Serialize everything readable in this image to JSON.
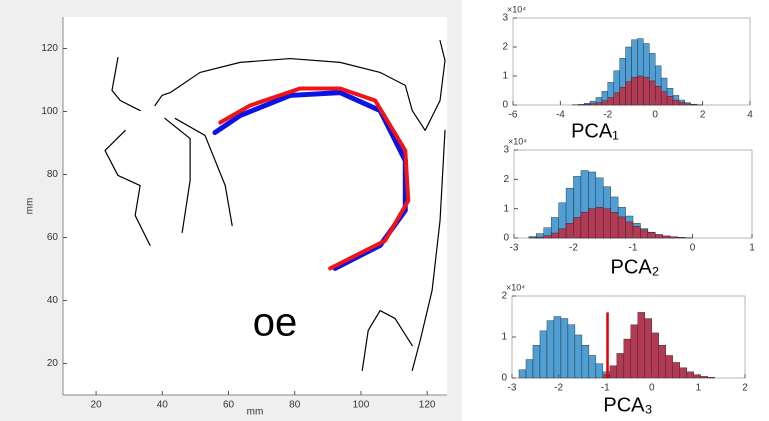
{
  "chart_data": [
    {
      "type": "line",
      "xlabel": "mm",
      "ylabel": "mm",
      "annotations": [
        "oe"
      ],
      "xlim": [
        10,
        126
      ],
      "ylim": [
        10,
        130
      ],
      "xticks": [
        20,
        40,
        60,
        80,
        100,
        120
      ],
      "yticks": [
        20,
        40,
        60,
        80,
        100,
        120
      ],
      "series": [
        {
          "color": "#000000",
          "line_width": 1.2,
          "x": [
            26.6,
            24.8,
            27.3,
            33.3
          ],
          "values": [
            117.1,
            106.7,
            103.5,
            100.3
          ]
        },
        {
          "color": "#000000",
          "line_width": 1.2,
          "x": [
            37.8,
            39.9,
            42.4,
            51.4,
            63.5,
            78.6,
            93.7,
            105.8,
            113.4,
            115.5,
            119.4,
            123.9,
            125.4,
            123.9
          ],
          "values": [
            101.9,
            105.1,
            106.0,
            112.4,
            115.6,
            116.8,
            115.6,
            112.4,
            108.3,
            100.3,
            94.0,
            103.5,
            116.2,
            122.5
          ]
        },
        {
          "color": "#000000",
          "line_width": 1.2,
          "x": [
            125.4,
            123.9,
            121.5,
            117.9,
            115.5
          ],
          "values": [
            94.0,
            65.4,
            43.2,
            27.3,
            17.8
          ]
        },
        {
          "color": "#000000",
          "line_width": 1.2,
          "x": [
            100.4,
            102.2,
            105.8,
            110.3,
            115.5
          ],
          "values": [
            17.8,
            30.5,
            36.8,
            34.3,
            25.7
          ]
        },
        {
          "color": "#000000",
          "line_width": 1.2,
          "x": [
            40.8,
            48.4,
            48.4,
            46.0
          ],
          "values": [
            97.8,
            91.4,
            78.1,
            61.6
          ]
        },
        {
          "color": "#000000",
          "line_width": 1.2,
          "x": [
            28.8,
            22.7,
            26.6,
            33.3,
            31.8,
            36.3
          ],
          "values": [
            94.0,
            87.6,
            79.7,
            76.5,
            67.0,
            57.5
          ]
        },
        {
          "color": "#000000",
          "line_width": 1.2,
          "x": [
            43.9,
            52.9,
            59.0,
            61.1
          ],
          "values": [
            97.8,
            92.4,
            76.5,
            63.8
          ]
        },
        {
          "color": "#0a14e6",
          "line_width": 5,
          "x": [
            55.9,
            63.5,
            78.6,
            93.7,
            105.8,
            113.4,
            113.4,
            105.8,
            92.2
          ],
          "values": [
            93.3,
            98.7,
            105.1,
            106.0,
            100.3,
            84.4,
            68.6,
            57.5,
            50.2
          ]
        },
        {
          "color": "#f01414",
          "line_width": 4,
          "x": [
            57.5,
            66.5,
            81.6,
            93.7,
            104.3,
            113.4,
            114.3,
            107.3,
            90.7
          ],
          "values": [
            96.5,
            101.9,
            107.3,
            107.3,
            103.5,
            87.6,
            71.7,
            59.0,
            50.2
          ]
        }
      ]
    },
    {
      "type": "histogram",
      "xlabel": "PCA₁",
      "y_exponent": "×10⁴",
      "xlim": [
        -6,
        4
      ],
      "ylim": [
        0,
        3
      ],
      "xticks": [
        -6,
        -4,
        -2,
        0,
        2,
        4
      ],
      "yticks": [
        0,
        1,
        2,
        3
      ],
      "bins": [
        -4.5,
        -4.25,
        -4,
        -3.75,
        -3.5,
        -3.25,
        -3,
        -2.75,
        -2.5,
        -2.25,
        -2,
        -1.75,
        -1.5,
        -1.25,
        -1,
        -0.75,
        -0.5,
        -0.25,
        0,
        0.25,
        0.5,
        0.75,
        1,
        1.25,
        1.5,
        1.75,
        2
      ],
      "series": [
        {
          "color": "#4f9fd4",
          "values": [
            0,
            0,
            0,
            0,
            0.01,
            0.02,
            0.06,
            0.13,
            0.26,
            0.47,
            0.78,
            1.18,
            1.61,
            2.0,
            2.25,
            2.29,
            2.12,
            1.78,
            1.35,
            0.93,
            0.58,
            0.33,
            0.17,
            0.08,
            0.03,
            0.01
          ]
        },
        {
          "color": "#b23a54",
          "values": [
            0,
            0,
            0,
            0,
            0,
            0.01,
            0.02,
            0.04,
            0.08,
            0.15,
            0.26,
            0.42,
            0.61,
            0.8,
            0.95,
            1.0,
            0.96,
            0.83,
            0.65,
            0.46,
            0.3,
            0.17,
            0.09,
            0.04,
            0.02,
            0.01
          ]
        }
      ]
    },
    {
      "type": "histogram",
      "xlabel": "PCA₂",
      "y_exponent": "×10⁴",
      "xlim": [
        -3,
        1
      ],
      "ylim": [
        0,
        3
      ],
      "xticks": [
        -3,
        -2,
        -1,
        0,
        1
      ],
      "yticks": [
        0,
        1,
        2,
        3
      ],
      "bins": [
        -2.75,
        -2.625,
        -2.5,
        -2.375,
        -2.25,
        -2.125,
        -2,
        -1.875,
        -1.75,
        -1.625,
        -1.5,
        -1.375,
        -1.25,
        -1.125,
        -1,
        -0.875,
        -0.75,
        -0.625,
        -0.5,
        -0.375,
        -0.25,
        -0.125,
        0,
        0.125,
        0.25
      ],
      "series": [
        {
          "color": "#4f9fd4",
          "values": [
            0.05,
            0.15,
            0.35,
            0.7,
            1.2,
            1.7,
            2.1,
            2.3,
            2.25,
            2.05,
            1.75,
            1.4,
            1.05,
            0.75,
            0.5,
            0.32,
            0.2,
            0.12,
            0.07,
            0.04,
            0.02,
            0.01,
            0,
            0
          ]
        },
        {
          "color": "#b23a54",
          "values": [
            0.01,
            0.03,
            0.08,
            0.17,
            0.32,
            0.5,
            0.7,
            0.88,
            1.0,
            1.05,
            1.0,
            0.88,
            0.72,
            0.55,
            0.4,
            0.28,
            0.18,
            0.11,
            0.07,
            0.04,
            0.02,
            0.01,
            0,
            0
          ]
        }
      ]
    },
    {
      "type": "histogram",
      "xlabel": "PCA₃",
      "y_exponent": "×10⁴",
      "xlim": [
        -3,
        2
      ],
      "ylim": [
        0,
        2
      ],
      "xticks": [
        -3,
        -2,
        -1,
        0,
        1,
        2
      ],
      "yticks": [
        0,
        1,
        2
      ],
      "bins": [
        -2.85,
        -2.7,
        -2.55,
        -2.4,
        -2.25,
        -2.1,
        -1.95,
        -1.8,
        -1.65,
        -1.5,
        -1.35,
        -1.2,
        -1.05,
        -0.9,
        -0.75,
        -0.6,
        -0.45,
        -0.3,
        -0.15,
        0,
        0.15,
        0.3,
        0.45,
        0.6,
        0.75,
        0.9,
        1.05,
        1.2,
        1.35
      ],
      "series": [
        {
          "color": "#4f9fd4",
          "values": [
            0.2,
            0.45,
            0.8,
            1.15,
            1.4,
            1.5,
            1.45,
            1.3,
            1.05,
            0.8,
            0.55,
            0.35,
            0.15,
            0,
            0,
            0,
            0,
            0,
            0,
            0,
            0,
            0,
            0,
            0,
            0,
            0,
            0,
            0
          ]
        },
        {
          "color": "#b23a54",
          "values": [
            0,
            0,
            0,
            0,
            0,
            0,
            0,
            0,
            0,
            0,
            0,
            0,
            0.08,
            0.3,
            0.6,
            0.95,
            1.3,
            1.6,
            1.45,
            1.1,
            0.8,
            0.55,
            0.38,
            0.25,
            0.15,
            0.08,
            0.04,
            0.02
          ]
        }
      ],
      "vline": {
        "x": -0.95,
        "y": 1.6,
        "color": "#e00000"
      }
    }
  ]
}
